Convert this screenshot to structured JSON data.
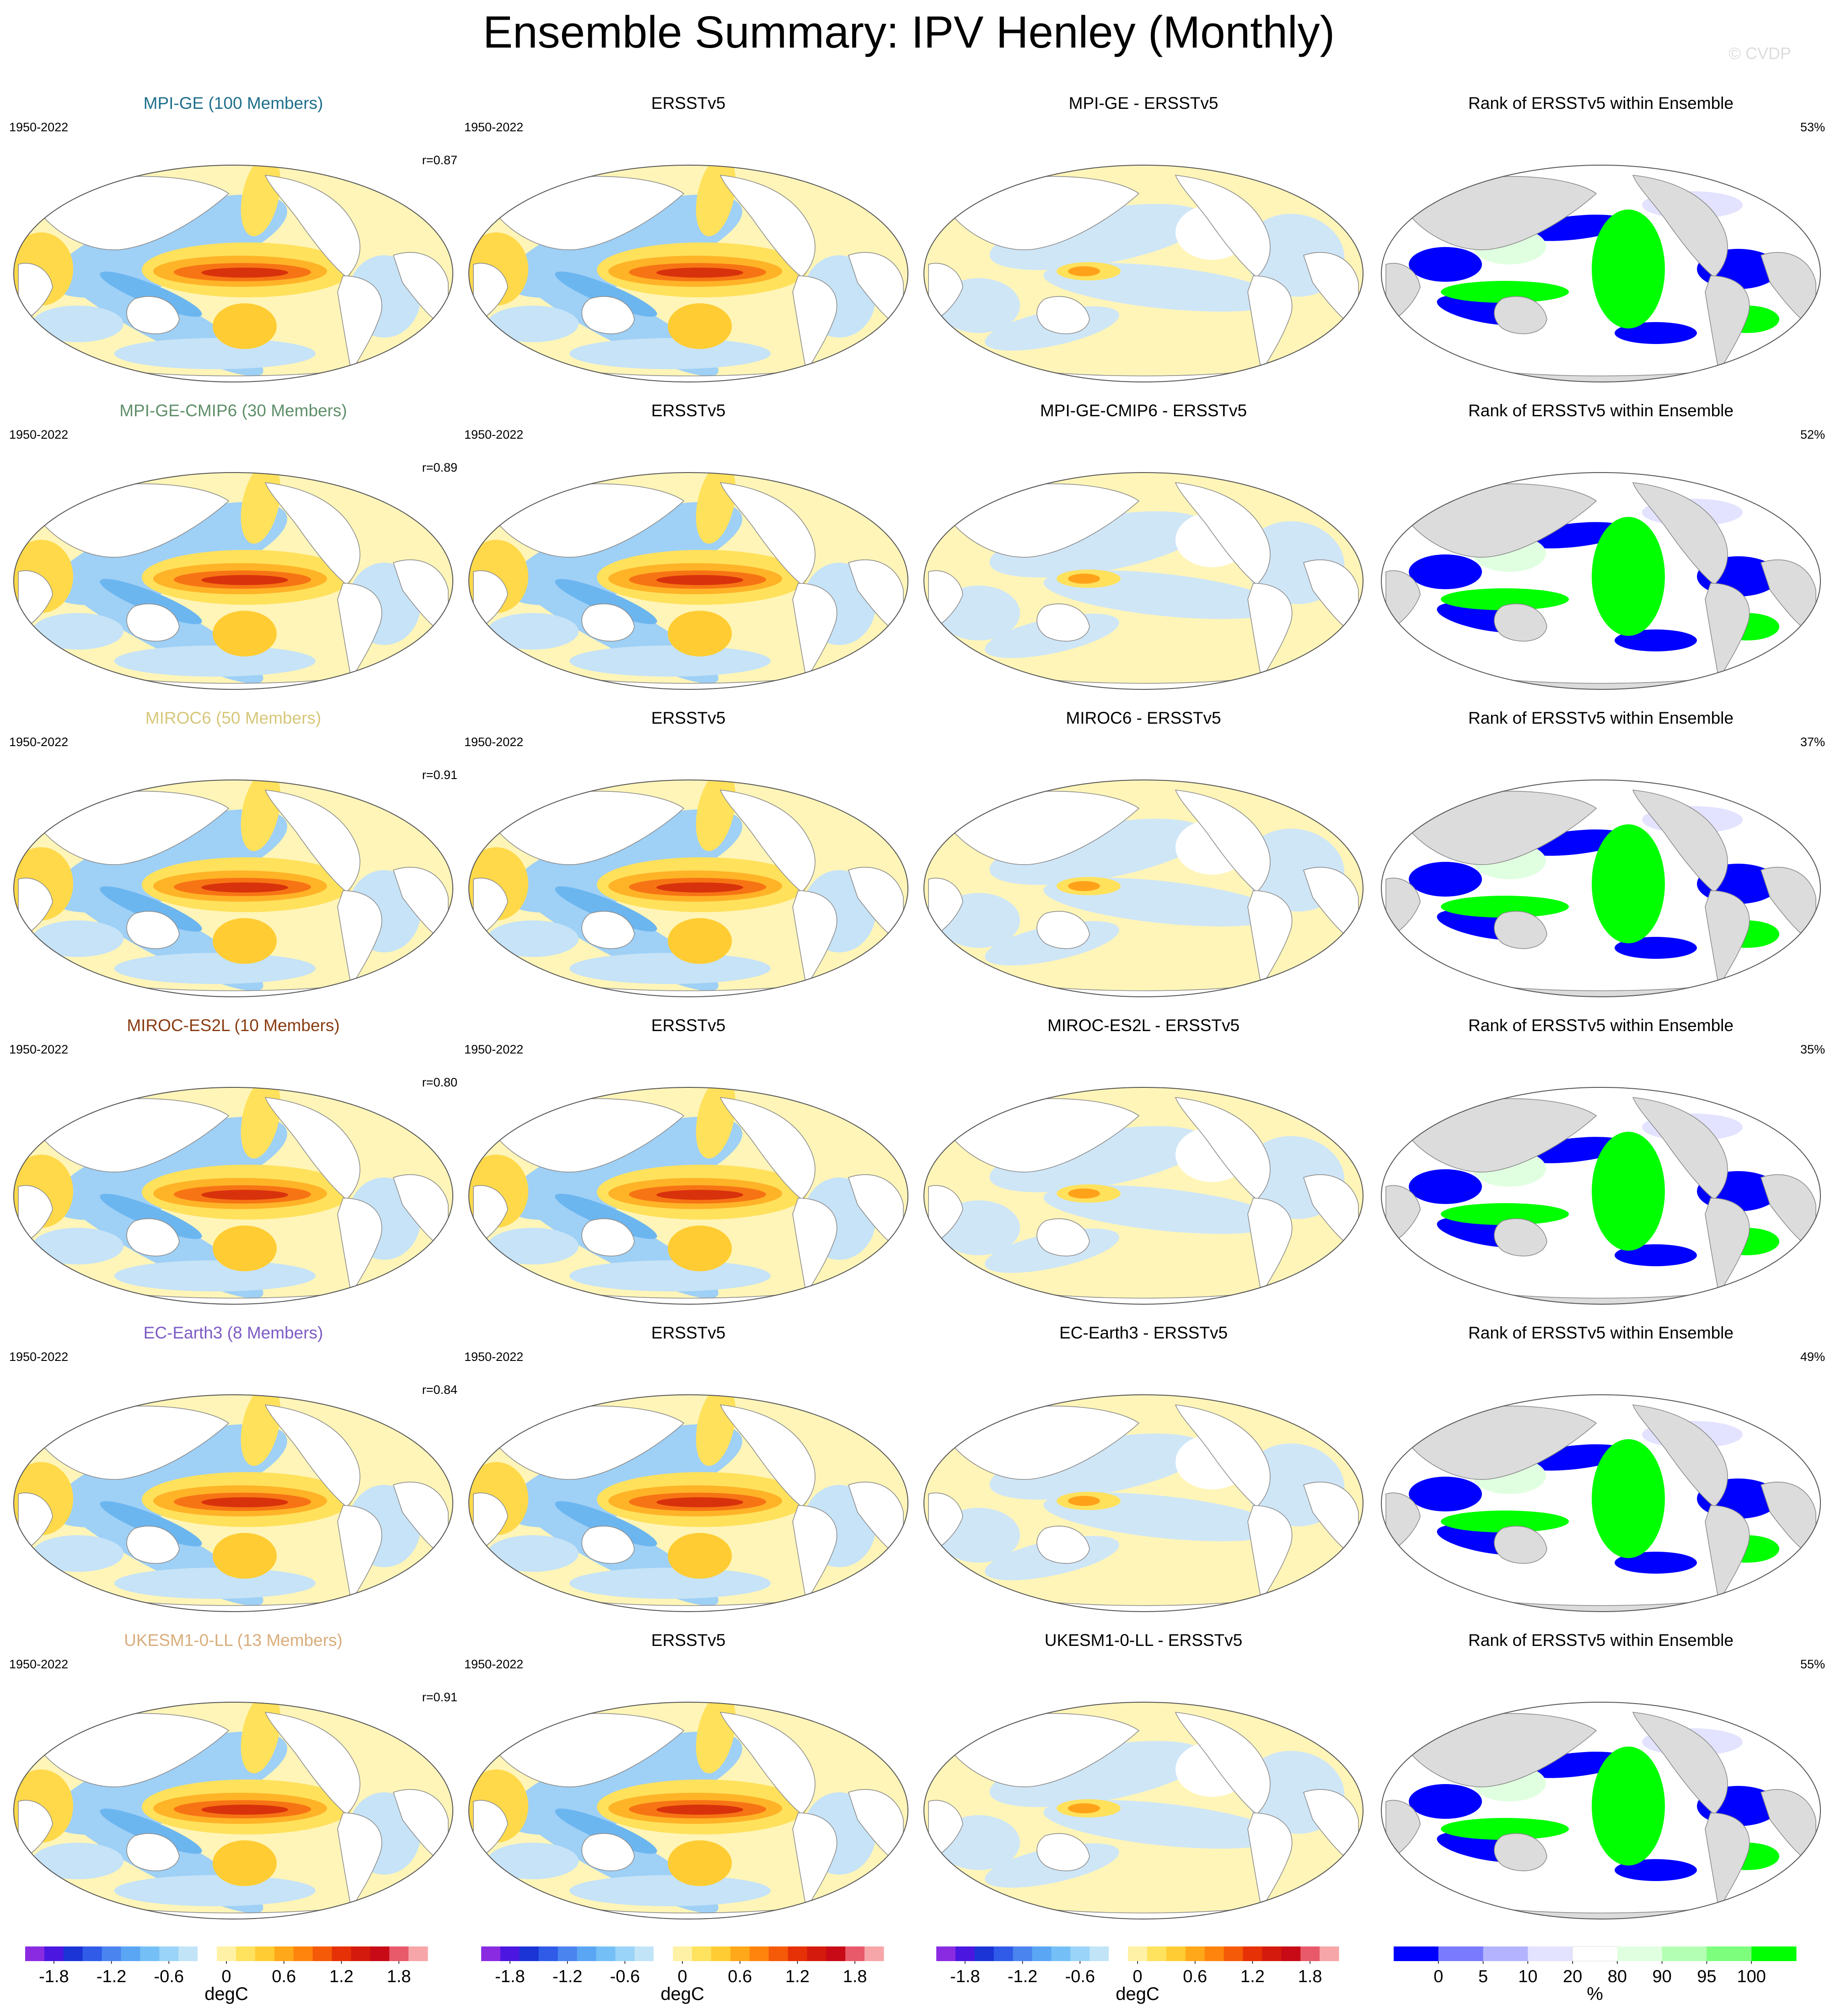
{
  "title": "Ensemble Summary: IPV Henley (Monthly)",
  "watermark": "© CVDP",
  "rows": [
    {
      "model_title": "MPI-GE (100 Members)",
      "model_color": "#1f6f8b",
      "years": "1950-2022",
      "corr": "r=0.87",
      "obs_title": "ERSSTv5",
      "diff_title": "MPI-GE - ERSSTv5",
      "rank_title": "Rank of ERSSTv5 within Ensemble",
      "rank_pct": "53%"
    },
    {
      "model_title": "MPI-GE-CMIP6 (30 Members)",
      "model_color": "#5f8f69",
      "years": "1950-2022",
      "corr": "r=0.89",
      "obs_title": "ERSSTv5",
      "diff_title": "MPI-GE-CMIP6 - ERSSTv5",
      "rank_title": "Rank of ERSSTv5 within Ensemble",
      "rank_pct": "52%"
    },
    {
      "model_title": "MIROC6 (50 Members)",
      "model_color": "#d7c77a",
      "years": "1950-2022",
      "corr": "r=0.91",
      "obs_title": "ERSSTv5",
      "diff_title": "MIROC6 - ERSSTv5",
      "rank_title": "Rank of ERSSTv5 within Ensemble",
      "rank_pct": "37%"
    },
    {
      "model_title": "MIROC-ES2L (10 Members)",
      "model_color": "#8a3c12",
      "years": "1950-2022",
      "corr": "r=0.80",
      "obs_title": "ERSSTv5",
      "diff_title": "MIROC-ES2L - ERSSTv5",
      "rank_title": "Rank of ERSSTv5 within Ensemble",
      "rank_pct": "35%"
    },
    {
      "model_title": "EC-Earth3 (8 Members)",
      "model_color": "#7d5bc6",
      "years": "1950-2022",
      "corr": "r=0.84",
      "obs_title": "ERSSTv5",
      "diff_title": "EC-Earth3 - ERSSTv5",
      "rank_title": "Rank of ERSSTv5 within Ensemble",
      "rank_pct": "49%"
    },
    {
      "model_title": "UKESM1-0-LL (13 Members)",
      "model_color": "#d9ad7c",
      "years": "1950-2022",
      "corr": "r=0.91",
      "obs_title": "ERSSTv5",
      "diff_title": "UKESM1-0-LL - ERSSTv5",
      "rank_title": "Rank of ERSSTv5 within Ensemble",
      "rank_pct": "55%"
    }
  ],
  "chart_data": {
    "type": "heatmap",
    "projection": "Robinson (global, Pacific-centered)",
    "field": "IPV Henley regression pattern of SST",
    "period": "1950-2022",
    "units": "degC",
    "anomaly_colorbar": {
      "label": "degC",
      "ticks": [
        "-1.8",
        "-1.2",
        "-0.6",
        "0",
        "0.6",
        "1.2",
        "1.8"
      ],
      "colors": [
        "#8a2be2",
        "#4b16e0",
        "#1a34d6",
        "#2f5be8",
        "#4a84ef",
        "#5aa6f4",
        "#74c0f6",
        "#9ad4f8",
        "#c2e4f7",
        "#ffffff",
        "#fff2a6",
        "#ffe25e",
        "#ffcc33",
        "#ffa81a",
        "#ff840d",
        "#f55a08",
        "#e63006",
        "#d41a0c",
        "#c70a16",
        "#e85a6a",
        "#f6a6a8"
      ]
    },
    "rank_colorbar": {
      "label": "%",
      "ticks": [
        "0",
        "5",
        "10",
        "20",
        "80",
        "90",
        "95",
        "100"
      ],
      "colors": [
        "#0000ff",
        "#7a7aff",
        "#b3b3ff",
        "#e3e3ff",
        "#ffffff",
        "#e0ffe0",
        "#b3ffb3",
        "#7dff7d",
        "#00ff00"
      ]
    },
    "columns": [
      "Ensemble mean pattern",
      "ERSSTv5 pattern",
      "Ensemble mean minus ERSSTv5",
      "Rank of ERSSTv5 within ensemble"
    ],
    "pattern_correlations": {
      "MPI-GE": 0.87,
      "MPI-GE-CMIP6": 0.89,
      "MIROC6": 0.91,
      "MIROC-ES2L": 0.8,
      "EC-Earth3": 0.84,
      "UKESM1-0-LL": 0.91
    },
    "rank_percent_within_10_90": {
      "MPI-GE": 53,
      "MPI-GE-CMIP6": 52,
      "MIROC6": 37,
      "MIROC-ES2L": 35,
      "EC-Earth3": 49,
      "UKESM1-0-LL": 55
    }
  }
}
